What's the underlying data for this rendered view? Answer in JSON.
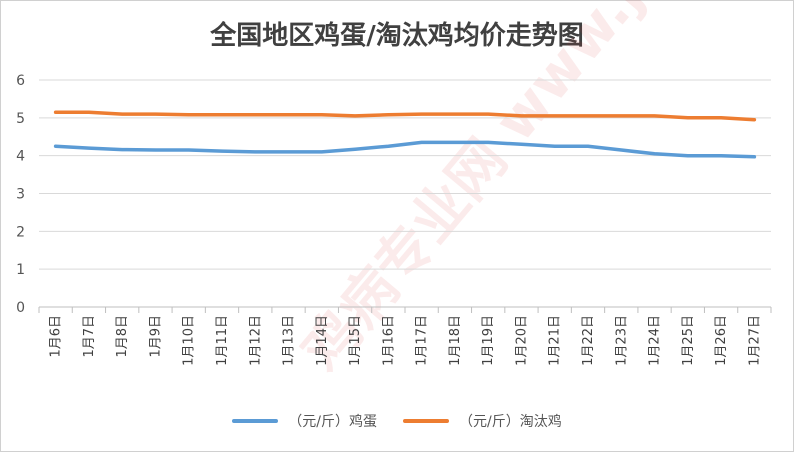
{
  "chart_data": {
    "type": "line",
    "title": "全国地区鸡蛋/淘汰鸡均价走势图",
    "categories": [
      "1月6日",
      "1月7日",
      "1月8日",
      "1月9日",
      "1月10日",
      "1月11日",
      "1月12日",
      "1月13日",
      "1月14日",
      "1月15日",
      "1月16日",
      "1月17日",
      "1月18日",
      "1月19日",
      "1月20日",
      "1月21日",
      "1月22日",
      "1月23日",
      "1月24日",
      "1月25日",
      "1月26日",
      "1月27日"
    ],
    "y_ticks": [
      "0",
      "1",
      "2",
      "3",
      "4",
      "5",
      "6"
    ],
    "ylim": [
      0,
      6
    ],
    "grid": true,
    "legend_position": "bottom",
    "series": [
      {
        "name": "（元/斤）鸡蛋",
        "color": "#5b9bd5",
        "values": [
          4.25,
          4.2,
          4.16,
          4.15,
          4.15,
          4.12,
          4.1,
          4.1,
          4.1,
          4.17,
          4.25,
          4.35,
          4.35,
          4.35,
          4.3,
          4.25,
          4.25,
          4.15,
          4.05,
          4.0,
          4.0,
          3.97
        ]
      },
      {
        "name": "（元/斤）淘汰鸡",
        "color": "#ed7d31",
        "values": [
          5.15,
          5.15,
          5.1,
          5.1,
          5.08,
          5.08,
          5.08,
          5.08,
          5.08,
          5.05,
          5.08,
          5.1,
          5.1,
          5.1,
          5.05,
          5.05,
          5.05,
          5.05,
          5.05,
          5.0,
          5.0,
          4.95
        ]
      }
    ]
  },
  "watermark": "鸡病专业网 www.jbzyw.com"
}
